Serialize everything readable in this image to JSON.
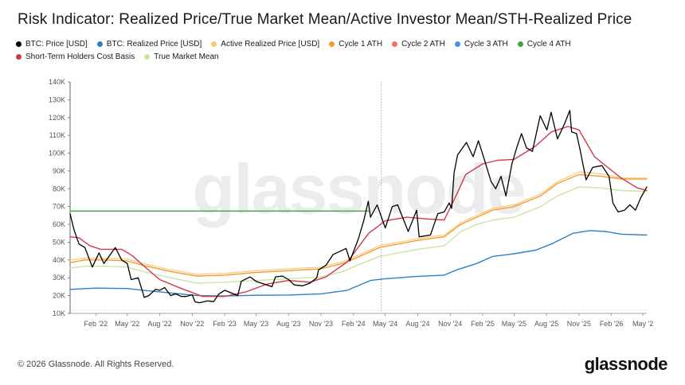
{
  "title": "Risk Indicator: Realized Price/True Market Mean/Active Investor Mean/STH-Realized Price",
  "watermark": "glassnode",
  "footer": "© 2026 Glassnode. All Rights Reserved.",
  "brand": "glassnode",
  "legend": [
    {
      "label": "BTC: Price [USD]",
      "color": "#000000"
    },
    {
      "label": "BTC: Realized Price [USD]",
      "color": "#2f7fc1"
    },
    {
      "label": "Active Realized Price [USD]",
      "color": "#f7c97a"
    },
    {
      "label": "Cycle 1 ATH",
      "color": "#f39c34"
    },
    {
      "label": "Cycle 2 ATH",
      "color": "#ef6f6c"
    },
    {
      "label": "Cycle 3 ATH",
      "color": "#4c8fe6"
    },
    {
      "label": "Cycle 4 ATH",
      "color": "#3aa83a"
    },
    {
      "label": "Short-Term Holders Cost Basis",
      "color": "#d1394b"
    },
    {
      "label": "True Market Mean",
      "color": "#c7e6a4"
    }
  ],
  "chart_data": {
    "type": "line",
    "x_range": [
      "2021-11-20",
      "2026-05-12"
    ],
    "ylim": [
      10000,
      140000
    ],
    "yticks": [
      {
        "value": 10000,
        "label": "10K"
      },
      {
        "value": 20000,
        "label": "20K"
      },
      {
        "value": 30000,
        "label": "30K"
      },
      {
        "value": 40000,
        "label": "40K"
      },
      {
        "value": 50000,
        "label": "50K"
      },
      {
        "value": 60000,
        "label": "60K"
      },
      {
        "value": 70000,
        "label": "70K"
      },
      {
        "value": 80000,
        "label": "80K"
      },
      {
        "value": 90000,
        "label": "90K"
      },
      {
        "value": 100000,
        "label": "100K"
      },
      {
        "value": 110000,
        "label": "110K"
      },
      {
        "value": 120000,
        "label": "120K"
      },
      {
        "value": 130000,
        "label": "130K"
      },
      {
        "value": 140000,
        "label": "140K"
      }
    ],
    "xticks": [
      {
        "date": "2022-02-01",
        "label": "Feb '22"
      },
      {
        "date": "2022-05-01",
        "label": "May '22"
      },
      {
        "date": "2022-08-01",
        "label": "Aug '22"
      },
      {
        "date": "2022-11-01",
        "label": "Nov '22"
      },
      {
        "date": "2023-02-01",
        "label": "Feb '23"
      },
      {
        "date": "2023-05-01",
        "label": "May '23"
      },
      {
        "date": "2023-08-01",
        "label": "Aug '23"
      },
      {
        "date": "2023-11-01",
        "label": "Nov '23"
      },
      {
        "date": "2024-02-01",
        "label": "Feb '24"
      },
      {
        "date": "2024-05-01",
        "label": "May '24"
      },
      {
        "date": "2024-08-01",
        "label": "Aug '24"
      },
      {
        "date": "2024-11-01",
        "label": "Nov '24"
      },
      {
        "date": "2025-02-01",
        "label": "Feb '25"
      },
      {
        "date": "2025-05-01",
        "label": "May '25"
      },
      {
        "date": "2025-08-01",
        "label": "Aug '25"
      },
      {
        "date": "2025-11-01",
        "label": "Nov '25"
      },
      {
        "date": "2026-02-01",
        "label": "Feb '26"
      },
      {
        "date": "2026-05-01",
        "label": "May '2"
      }
    ],
    "marker_date": "2024-04-20",
    "grid": false,
    "series": [
      {
        "name": "Cycle 4 ATH",
        "color": "#3aa83a",
        "width": 1.3,
        "x": [
          "2021-11-20",
          "2024-03-14"
        ],
        "y": [
          67500,
          67500
        ]
      },
      {
        "name": "BTC: Realized Price [USD]",
        "color": "#2f7fc1",
        "width": 1.4,
        "x": [
          "2021-11-20",
          "2022-02-01",
          "2022-05-01",
          "2022-06-15",
          "2022-09-01",
          "2022-11-15",
          "2023-02-01",
          "2023-05-01",
          "2023-08-01",
          "2023-11-01",
          "2024-01-15",
          "2024-03-20",
          "2024-05-01",
          "2024-08-01",
          "2024-10-15",
          "2024-11-20",
          "2025-01-15",
          "2025-03-01",
          "2025-05-01",
          "2025-07-01",
          "2025-08-15",
          "2025-10-15",
          "2025-12-01",
          "2026-01-15",
          "2026-03-01",
          "2026-05-12"
        ],
        "y": [
          23500,
          24200,
          24000,
          23000,
          21500,
          20000,
          19800,
          20200,
          20300,
          21000,
          23000,
          28500,
          29500,
          30800,
          31500,
          34500,
          38000,
          42000,
          43500,
          45500,
          49000,
          55000,
          56500,
          56000,
          54500,
          54000
        ]
      },
      {
        "name": "Cycle 1 ATH",
        "color": "#f39c34",
        "width": 1.4,
        "x": [
          "2021-11-20",
          "2022-01-01",
          "2022-03-01",
          "2022-05-01",
          "2022-06-15",
          "2022-09-01",
          "2022-11-15",
          "2023-02-01",
          "2023-05-01",
          "2023-08-01",
          "2023-11-01",
          "2024-01-01",
          "2024-03-01",
          "2024-04-15",
          "2024-08-01",
          "2024-10-15",
          "2024-12-01",
          "2025-01-15",
          "2025-03-01",
          "2025-05-01",
          "2025-07-15",
          "2025-09-01",
          "2025-11-01",
          "2026-01-01",
          "2026-03-01",
          "2026-05-12"
        ],
        "y": [
          38500,
          40000,
          40000,
          39500,
          37000,
          33500,
          31000,
          31500,
          33000,
          34000,
          35000,
          38000,
          43000,
          47000,
          51000,
          53000,
          60000,
          64000,
          68000,
          70000,
          76000,
          83000,
          88000,
          87000,
          85500,
          85500
        ]
      },
      {
        "name": "Active Realized Price [USD]",
        "color": "#f7c97a",
        "width": 1.2,
        "x": [
          "2021-11-20",
          "2022-01-01",
          "2022-03-01",
          "2022-05-01",
          "2022-06-15",
          "2022-09-01",
          "2022-11-15",
          "2023-02-01",
          "2023-05-01",
          "2023-08-01",
          "2023-11-01",
          "2024-01-01",
          "2024-03-01",
          "2024-04-15",
          "2024-08-01",
          "2024-10-15",
          "2024-12-01",
          "2025-01-15",
          "2025-03-01",
          "2025-05-01",
          "2025-07-15",
          "2025-09-01",
          "2025-11-01",
          "2026-01-01",
          "2026-03-01",
          "2026-05-12"
        ],
        "y": [
          40000,
          41000,
          41000,
          40500,
          38000,
          34500,
          32000,
          32500,
          34000,
          35000,
          36000,
          39000,
          44000,
          48000,
          52000,
          54000,
          61000,
          65000,
          69000,
          71000,
          77000,
          84000,
          89500,
          88500,
          86000,
          86000
        ]
      },
      {
        "name": "True Market Mean",
        "color": "#c7e6a4",
        "width": 1.4,
        "x": [
          "2021-11-20",
          "2022-01-01",
          "2022-03-01",
          "2022-05-01",
          "2022-06-15",
          "2022-09-01",
          "2022-11-15",
          "2023-02-01",
          "2023-05-01",
          "2023-08-01",
          "2023-11-01",
          "2024-01-01",
          "2024-03-01",
          "2024-04-15",
          "2024-08-01",
          "2024-10-15",
          "2024-12-01",
          "2025-01-15",
          "2025-03-01",
          "2025-05-01",
          "2025-07-15",
          "2025-09-01",
          "2025-11-01",
          "2026-01-01",
          "2026-03-01",
          "2026-05-12"
        ],
        "y": [
          35500,
          36500,
          36500,
          36000,
          33500,
          30000,
          27000,
          27500,
          28500,
          29500,
          30500,
          33500,
          38500,
          42000,
          46000,
          48000,
          56000,
          60000,
          62500,
          64000,
          70000,
          76000,
          81000,
          80500,
          79000,
          78500
        ]
      },
      {
        "name": "Short-Term Holders Cost Basis",
        "color": "#d1394b",
        "width": 1.4,
        "x": [
          "2021-11-20",
          "2021-12-15",
          "2022-01-15",
          "2022-02-15",
          "2022-04-15",
          "2022-05-15",
          "2022-06-15",
          "2022-08-01",
          "2022-10-01",
          "2022-12-01",
          "2023-02-01",
          "2023-04-01",
          "2023-06-01",
          "2023-08-01",
          "2023-10-01",
          "2023-11-15",
          "2024-01-15",
          "2024-03-15",
          "2024-05-01",
          "2024-07-01",
          "2024-09-01",
          "2024-10-15",
          "2024-11-15",
          "2024-12-15",
          "2025-02-01",
          "2025-03-15",
          "2025-05-01",
          "2025-07-01",
          "2025-08-15",
          "2025-10-01",
          "2025-11-01",
          "2025-12-15",
          "2026-01-15",
          "2026-03-01",
          "2026-04-15",
          "2026-05-12"
        ],
        "y": [
          53000,
          52500,
          48000,
          46000,
          46000,
          42500,
          37000,
          29000,
          24000,
          19500,
          19500,
          22000,
          26500,
          28500,
          27500,
          30500,
          39000,
          55000,
          62000,
          64000,
          63000,
          62500,
          75000,
          88000,
          94000,
          96000,
          96500,
          104000,
          112000,
          115000,
          113000,
          98000,
          93000,
          86000,
          80500,
          79000
        ]
      },
      {
        "name": "BTC: Price [USD]",
        "color": "#000000",
        "width": 1.3,
        "x": [
          "2021-11-20",
          "2021-12-01",
          "2021-12-15",
          "2022-01-01",
          "2022-01-22",
          "2022-02-10",
          "2022-02-24",
          "2022-03-28",
          "2022-04-15",
          "2022-05-01",
          "2022-05-12",
          "2022-06-01",
          "2022-06-13",
          "2022-06-18",
          "2022-07-01",
          "2022-07-20",
          "2022-08-01",
          "2022-08-15",
          "2022-09-01",
          "2022-09-15",
          "2022-10-01",
          "2022-10-15",
          "2022-11-01",
          "2022-11-09",
          "2022-11-21",
          "2022-12-15",
          "2023-01-01",
          "2023-01-15",
          "2023-02-01",
          "2023-03-10",
          "2023-03-20",
          "2023-04-14",
          "2023-05-01",
          "2023-06-15",
          "2023-06-25",
          "2023-07-15",
          "2023-08-01",
          "2023-08-17",
          "2023-09-10",
          "2023-10-01",
          "2023-10-20",
          "2023-10-25",
          "2023-11-15",
          "2023-12-05",
          "2024-01-11",
          "2024-01-22",
          "2024-02-15",
          "2024-03-01",
          "2024-03-14",
          "2024-03-20",
          "2024-04-08",
          "2024-05-01",
          "2024-05-21",
          "2024-06-05",
          "2024-07-05",
          "2024-07-29",
          "2024-08-05",
          "2024-09-06",
          "2024-09-27",
          "2024-10-15",
          "2024-10-29",
          "2024-11-05",
          "2024-11-12",
          "2024-11-22",
          "2024-12-17",
          "2025-01-05",
          "2025-01-20",
          "2025-02-05",
          "2025-02-25",
          "2025-03-10",
          "2025-03-25",
          "2025-04-08",
          "2025-04-25",
          "2025-05-10",
          "2025-05-22",
          "2025-06-05",
          "2025-06-22",
          "2025-07-14",
          "2025-08-02",
          "2025-08-14",
          "2025-09-01",
          "2025-09-20",
          "2025-10-06",
          "2025-10-11",
          "2025-10-25",
          "2025-11-05",
          "2025-11-21",
          "2025-12-10",
          "2026-01-05",
          "2026-01-25",
          "2026-02-05",
          "2026-02-20",
          "2026-03-10",
          "2026-03-25",
          "2026-04-10",
          "2026-04-25",
          "2026-05-12"
        ],
        "y": [
          66000,
          57000,
          49000,
          47000,
          36000,
          44000,
          38000,
          47000,
          40000,
          38000,
          29000,
          30000,
          22500,
          19000,
          20000,
          23500,
          23000,
          24500,
          20000,
          21000,
          19500,
          19500,
          20500,
          16500,
          16000,
          17000,
          16600,
          20800,
          23000,
          20000,
          28000,
          30500,
          28000,
          25000,
          30500,
          31000,
          29000,
          26000,
          25500,
          27000,
          30000,
          34500,
          37000,
          43000,
          46500,
          39500,
          52000,
          62000,
          73000,
          64000,
          71000,
          58000,
          70000,
          71000,
          56000,
          68000,
          53000,
          54000,
          66000,
          67000,
          72000,
          69000,
          89000,
          99000,
          106000,
          98000,
          107000,
          97000,
          84000,
          80000,
          87000,
          76000,
          94000,
          104000,
          111000,
          103000,
          101000,
          121000,
          113000,
          123000,
          108000,
          116000,
          124000,
          112000,
          111000,
          101000,
          85000,
          92000,
          93000,
          87000,
          72000,
          67000,
          68000,
          71000,
          68000,
          75000,
          81000
        ]
      }
    ]
  }
}
